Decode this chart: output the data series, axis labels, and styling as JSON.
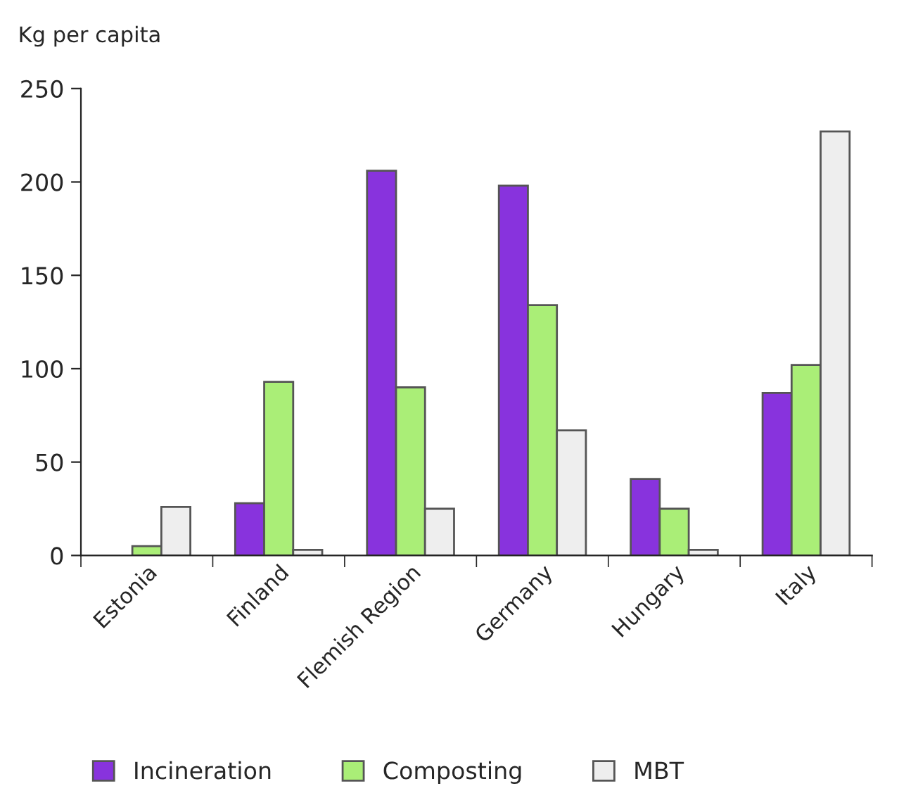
{
  "chart_data": {
    "type": "bar",
    "ylabel": "Kg per capita",
    "categories": [
      "Estonia",
      "Finland",
      "Flemish Region",
      "Germany",
      "Hungary",
      "Italy"
    ],
    "series": [
      {
        "name": "Incineration",
        "color": "#8833dd",
        "values": [
          null,
          28,
          206,
          198,
          41,
          87
        ]
      },
      {
        "name": "Composting",
        "color": "#aaee77",
        "values": [
          5,
          93,
          90,
          134,
          25,
          102
        ]
      },
      {
        "name": "MBT",
        "color": "#eeeeee",
        "values": [
          26,
          3,
          25,
          67,
          3,
          227
        ]
      }
    ],
    "ylim": [
      0,
      250
    ],
    "yticks": [
      0,
      50,
      100,
      150,
      200,
      250
    ],
    "grid": false,
    "legend": "bottom"
  }
}
